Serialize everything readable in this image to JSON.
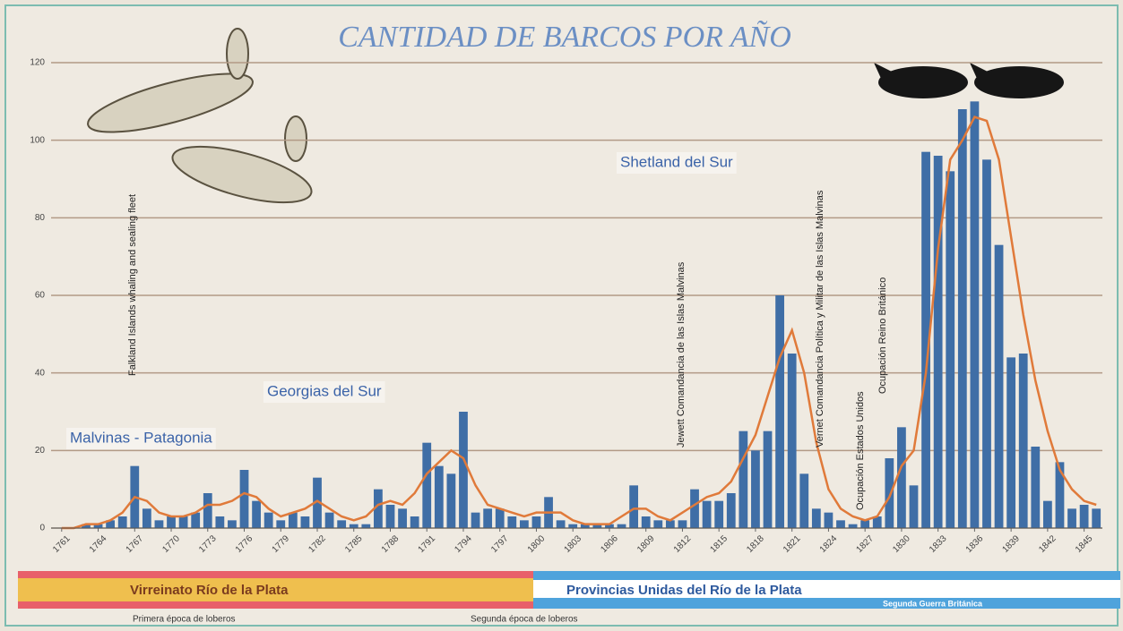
{
  "chart_data": {
    "type": "bar",
    "title": "CANTIDAD DE BARCOS POR AÑO",
    "x": [
      1761,
      1762,
      1763,
      1764,
      1765,
      1766,
      1767,
      1768,
      1769,
      1770,
      1771,
      1772,
      1773,
      1774,
      1775,
      1776,
      1777,
      1778,
      1779,
      1780,
      1781,
      1782,
      1783,
      1784,
      1785,
      1786,
      1787,
      1788,
      1789,
      1790,
      1791,
      1792,
      1793,
      1794,
      1795,
      1796,
      1797,
      1798,
      1799,
      1800,
      1801,
      1802,
      1803,
      1804,
      1805,
      1806,
      1807,
      1808,
      1809,
      1810,
      1811,
      1812,
      1813,
      1814,
      1815,
      1816,
      1817,
      1818,
      1819,
      1820,
      1821,
      1822,
      1823,
      1824,
      1825,
      1826,
      1827,
      1828,
      1829,
      1830,
      1831,
      1832,
      1833,
      1834,
      1835,
      1836,
      1837,
      1838,
      1839,
      1840,
      1841,
      1842,
      1843,
      1844,
      1845,
      1846
    ],
    "series": [
      {
        "color": "#3f6ea6",
        "values": [
          0,
          0,
          1,
          1,
          2,
          3,
          16,
          5,
          2,
          3,
          3,
          4,
          9,
          3,
          2,
          15,
          7,
          4,
          2,
          4,
          3,
          13,
          4,
          2,
          1,
          1,
          10,
          6,
          5,
          3,
          22,
          16,
          14,
          30,
          4,
          5,
          5,
          3,
          2,
          3,
          8,
          2,
          1,
          1,
          1,
          1,
          1,
          11,
          3,
          2,
          2,
          2,
          10,
          7,
          7,
          9,
          25,
          20,
          25,
          60,
          45,
          14,
          5,
          4,
          2,
          1,
          2,
          3,
          18,
          26,
          11,
          97,
          96,
          92,
          108,
          110,
          95,
          73,
          44,
          45,
          21,
          7,
          17,
          5,
          6,
          5
        ]
      },
      {
        "type": "line",
        "color": "#e07a3a",
        "values": [
          0,
          0,
          1,
          1,
          2,
          4,
          8,
          7,
          4,
          3,
          3,
          4,
          6,
          6,
          7,
          9,
          8,
          5,
          3,
          4,
          5,
          7,
          5,
          3,
          2,
          3,
          6,
          7,
          6,
          9,
          14,
          17,
          20,
          18,
          11,
          6,
          5,
          4,
          3,
          4,
          4,
          4,
          2,
          1,
          1,
          1,
          3,
          5,
          5,
          3,
          2,
          4,
          6,
          8,
          9,
          12,
          18,
          24,
          34,
          44,
          51,
          40,
          22,
          10,
          5,
          3,
          2,
          3,
          8,
          16,
          20,
          40,
          72,
          95,
          100,
          106,
          105,
          95,
          75,
          55,
          38,
          25,
          15,
          10,
          7,
          6
        ]
      }
    ],
    "xlim": [
      1760.5,
      1846.5
    ],
    "xticks": [
      1761,
      1764,
      1767,
      1770,
      1773,
      1776,
      1779,
      1782,
      1785,
      1788,
      1791,
      1794,
      1797,
      1800,
      1803,
      1806,
      1809,
      1812,
      1815,
      1818,
      1821,
      1824,
      1827,
      1830,
      1833,
      1836,
      1839,
      1842,
      1845
    ],
    "ylim": [
      0,
      120
    ],
    "yticks": [
      0,
      20,
      40,
      60,
      80,
      100,
      120
    ],
    "grid": true,
    "annotations": [
      "Malvinas - Patagonia",
      "Georgias del Sur",
      "Shetland del Sur"
    ],
    "vertical_annotations": [
      "Falkland Islands whaling and sealing fleet",
      "Jewett  Comandancia de las Islas Malvinas",
      "Vernet  Comandancia Política y Militar de las Islas Malvinas",
      "Ocupación Estados Unidos",
      "Ocupación Reino Británico"
    ],
    "periods": [
      "Virreinato Río de la Plata",
      "Provincias Unidas del Río de la Plata",
      "Segunda Guerra Británica"
    ],
    "eras": [
      "Primera época de loberos",
      "Segunda época de loberos"
    ]
  }
}
